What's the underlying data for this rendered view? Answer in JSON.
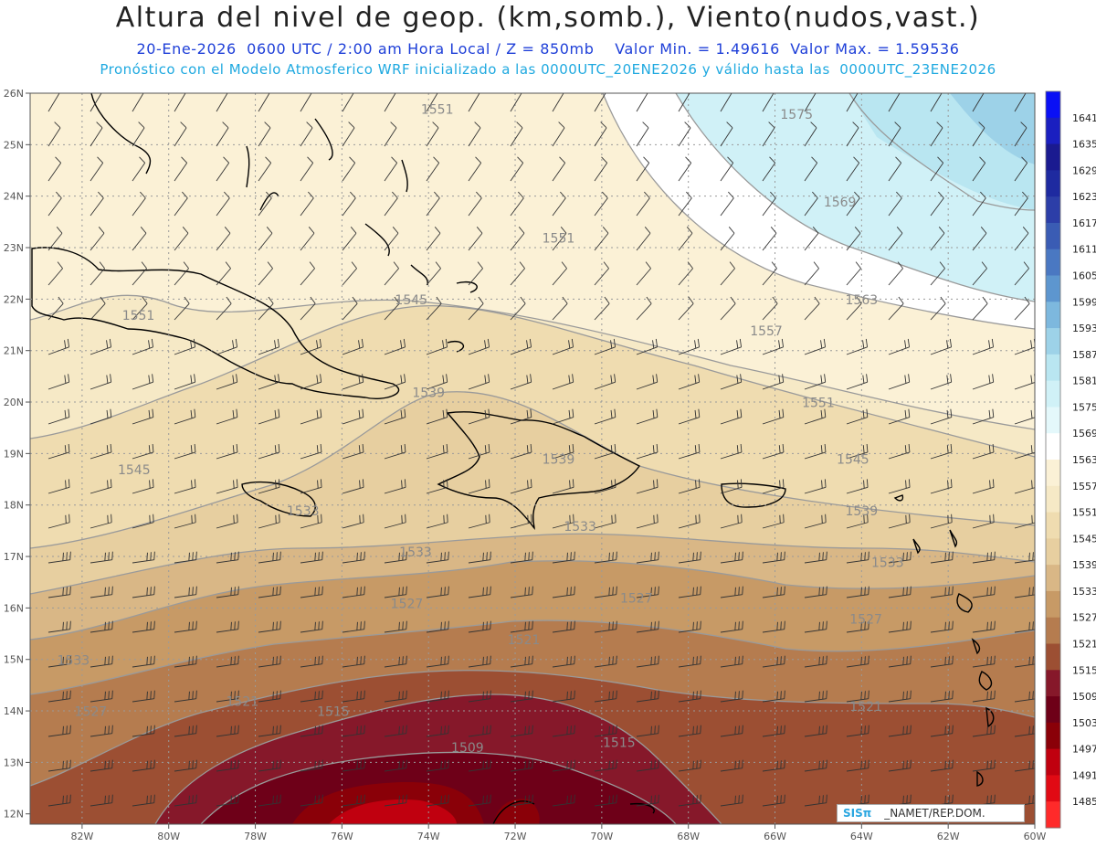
{
  "header": {
    "title": "Altura del nivel de geop. (km,somb.), Viento(nudos,vast.)",
    "line2": "20-Ene-2026  0600 UTC / 2:00 am Hora Local / Z = 850mb    Valor Min. = 1.49616  Valor Max. = 1.59536",
    "line3": "Pronóstico con el Modelo Atmosferico WRF inicializado a las 0000UTC_20ENE2026 y válido hasta las  0000UTC_23ENE2026"
  },
  "map": {
    "lon_range": [
      -83.2,
      -60
    ],
    "lat_range": [
      11.8,
      26
    ],
    "lon_ticks": [
      "82W",
      "80W",
      "78W",
      "76W",
      "74W",
      "72W",
      "70W",
      "68W",
      "66W",
      "64W",
      "62W",
      "60W"
    ],
    "lat_ticks": [
      "12N",
      "13N",
      "14N",
      "15N",
      "16N",
      "17N",
      "18N",
      "19N",
      "20N",
      "21N",
      "22N",
      "23N",
      "24N",
      "25N",
      "26N"
    ]
  },
  "colorbar": {
    "levels": [
      "1641",
      "1635",
      "1629",
      "1623",
      "1617",
      "1611",
      "1605",
      "1599",
      "1593",
      "1587",
      "1581",
      "1575",
      "1569",
      "1563",
      "1557",
      "1551",
      "1545",
      "1539",
      "1533",
      "1527",
      "1521",
      "1515",
      "1509",
      "1503",
      "1497",
      "1491",
      "1485"
    ],
    "colors": [
      "#0a10f5",
      "#1a1fc0",
      "#1a1a90",
      "#1e2aa0",
      "#2c3ea8",
      "#3a5cb4",
      "#4a78c2",
      "#5d96cf",
      "#7db8de",
      "#9dd2e8",
      "#b9e6f1",
      "#d0f1f7",
      "#e4f8fb",
      "#ffffff",
      "#fbf1d6",
      "#f6e9c6",
      "#efdcb0",
      "#e7cfa0",
      "#d9b786",
      "#c79a66",
      "#b57c4f",
      "#9c4f33",
      "#86182a",
      "#6e0018",
      "#8a0008",
      "#c0000f",
      "#e10a14",
      "#ff2a2a"
    ]
  },
  "contour_labels": [
    {
      "text": "1551",
      "lon": -73.8,
      "lat": 25.6
    },
    {
      "text": "1575",
      "lon": -65.5,
      "lat": 25.5
    },
    {
      "text": "1551",
      "lon": -71.0,
      "lat": 23.1
    },
    {
      "text": "1569",
      "lon": -64.5,
      "lat": 23.8
    },
    {
      "text": "1551",
      "lon": -80.7,
      "lat": 21.6
    },
    {
      "text": "1545",
      "lon": -74.4,
      "lat": 21.9
    },
    {
      "text": "1563",
      "lon": -64.0,
      "lat": 21.9
    },
    {
      "text": "1557",
      "lon": -66.2,
      "lat": 21.3
    },
    {
      "text": "1539",
      "lon": -74.0,
      "lat": 20.1
    },
    {
      "text": "1551",
      "lon": -65.0,
      "lat": 19.9
    },
    {
      "text": "1545",
      "lon": -80.8,
      "lat": 18.6
    },
    {
      "text": "1539",
      "lon": -71.0,
      "lat": 18.8
    },
    {
      "text": "1545",
      "lon": -64.2,
      "lat": 18.8
    },
    {
      "text": "1539",
      "lon": -64.0,
      "lat": 17.8
    },
    {
      "text": "1533",
      "lon": -76.9,
      "lat": 17.8
    },
    {
      "text": "1533",
      "lon": -70.5,
      "lat": 17.5
    },
    {
      "text": "1533",
      "lon": -74.3,
      "lat": 17.0
    },
    {
      "text": "1533",
      "lon": -63.4,
      "lat": 16.8
    },
    {
      "text": "1527",
      "lon": -74.5,
      "lat": 16.0
    },
    {
      "text": "1527",
      "lon": -69.2,
      "lat": 16.1
    },
    {
      "text": "1527",
      "lon": -63.9,
      "lat": 15.7
    },
    {
      "text": "1521",
      "lon": -71.8,
      "lat": 15.3
    },
    {
      "text": "1533",
      "lon": -82.2,
      "lat": 14.9
    },
    {
      "text": "1521",
      "lon": -78.3,
      "lat": 14.1
    },
    {
      "text": "1515",
      "lon": -76.2,
      "lat": 13.9
    },
    {
      "text": "1521",
      "lon": -63.9,
      "lat": 14.0
    },
    {
      "text": "1527",
      "lon": -81.8,
      "lat": 13.9
    },
    {
      "text": "1509",
      "lon": -73.1,
      "lat": 13.2
    },
    {
      "text": "1515",
      "lon": -69.6,
      "lat": 13.3
    }
  ],
  "credit": {
    "logo": "SISπ",
    "org": "_NAMET/REP.DOM."
  }
}
